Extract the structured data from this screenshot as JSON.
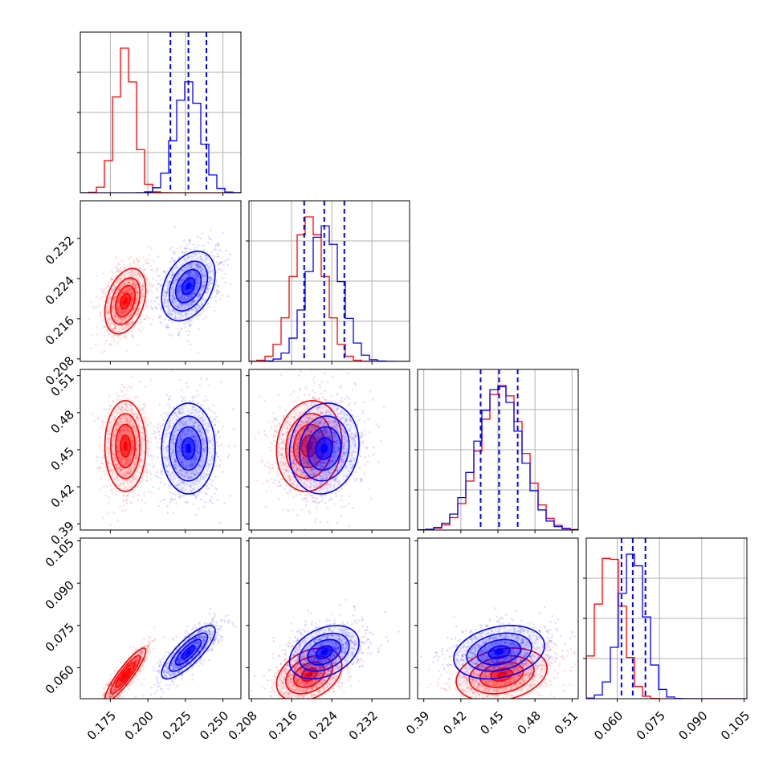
{
  "chart_data": {
    "type": "corner",
    "title": "",
    "params": [
      {
        "range": [
          0.155,
          0.262
        ],
        "ticks": [
          0.175,
          0.2,
          0.225,
          0.25
        ],
        "tick_labels": [
          "0.175",
          "0.200",
          "0.225",
          "0.250"
        ]
      },
      {
        "range": [
          0.2075,
          0.2395
        ],
        "ticks": [
          0.208,
          0.216,
          0.224,
          0.232
        ],
        "tick_labels": [
          "0.208",
          "0.216",
          "0.224",
          "0.232"
        ]
      },
      {
        "range": [
          0.385,
          0.515
        ],
        "ticks": [
          0.39,
          0.42,
          0.45,
          0.48,
          0.51
        ],
        "tick_labels": [
          "0.39",
          "0.42",
          "0.45",
          "0.48",
          "0.51"
        ]
      },
      {
        "range": [
          0.049,
          0.106
        ],
        "ticks": [
          0.06,
          0.075,
          0.09,
          0.105
        ],
        "tick_labels": [
          "0.060",
          "0.075",
          "0.090",
          "0.105"
        ]
      }
    ],
    "series": [
      {
        "color": "#ff0000",
        "mean": [
          0.185,
          0.2195,
          0.453,
          0.0575
        ],
        "sigma": [
          0.0065,
          0.0031,
          0.0175,
          0.0045
        ],
        "rho": [
          [
            1,
            0.35,
            0,
            0.9
          ],
          [
            0.35,
            1,
            0.1,
            0.35
          ],
          [
            0,
            0.1,
            1,
            0.25
          ],
          [
            0.9,
            0.35,
            0.25,
            1
          ]
        ]
      },
      {
        "color": "#0000ff",
        "mean": [
          0.227,
          0.2225,
          0.451,
          0.0655
        ],
        "sigma": [
          0.0085,
          0.0033,
          0.0175,
          0.0045
        ],
        "rho": [
          [
            1,
            0.35,
            0,
            0.8
          ],
          [
            0.35,
            1,
            0.1,
            0.35
          ],
          [
            0,
            0.1,
            1,
            0.25
          ],
          [
            0.8,
            0.35,
            0.25,
            1
          ]
        ]
      }
    ],
    "quantiles": {
      "color": "#0000ff",
      "values": [
        [
          0.215,
          0.227,
          0.239
        ],
        [
          0.2185,
          0.2225,
          0.2265
        ],
        [
          0.436,
          0.451,
          0.466
        ],
        [
          0.0615,
          0.0655,
          0.07
        ]
      ]
    },
    "grid": true,
    "hist_bins": 20
  }
}
